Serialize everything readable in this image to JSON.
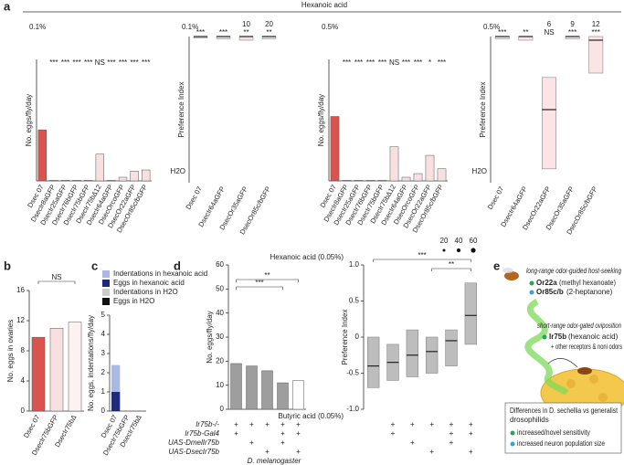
{
  "header": {
    "stimulus": "Hexanoic acid"
  },
  "panel_letters": [
    "a",
    "b",
    "c",
    "d",
    "e"
  ],
  "species_label": "D. melanogaster",
  "chart_data": [
    {
      "type": "bar",
      "concentration": "0.1%",
      "ylabel": "No. eggs/fly/day",
      "categories": [
        "Dsec 07",
        "DsecIr8aGFP",
        "DsecIr25aGFP",
        "DsecIr76bGFP",
        "DsecIr75bGFP",
        "DsecIr75bΔ12",
        "DsecIr64aGFP",
        "DsecOrcoGFP",
        "DsecOr22aGFP",
        "DsecOr85c/bGFP"
      ],
      "values": [
        4.2,
        0.05,
        0.05,
        0.05,
        0.05,
        2.2,
        0.05,
        0.3,
        0.8,
        0.9
      ],
      "colors": [
        "#d9534f",
        "#f9e0e0",
        "#f9e0e0",
        "#f9e0e0",
        "#f9e0e0",
        "#f9e0e0",
        "#f9e0e0",
        "#f9e0e0",
        "#f9e0e0",
        "#f9e0e0"
      ],
      "annotations": [
        null,
        "***",
        "***",
        "***",
        "***",
        "NS",
        "***",
        "***",
        "***",
        "***"
      ],
      "ylim": [
        0,
        10
      ]
    },
    {
      "type": "box",
      "concentration": "0.1%",
      "ylabel": "Preference Index",
      "bottom_label": "H2O",
      "categories": [
        "Dsec 07",
        "DsecIr64aGFP",
        "DsecOr35aGFP",
        "DsecOr85c/bGFP"
      ],
      "values": [
        1,
        1,
        1,
        1
      ],
      "q1": [
        0.98,
        0.97,
        0.95,
        0.97
      ],
      "q3": [
        1,
        1,
        1,
        1
      ],
      "color": "#f9e0e0",
      "annotations": [
        "***",
        "***",
        "**",
        "**"
      ],
      "n_labels": [
        null,
        null,
        "10",
        "20"
      ],
      "ylim": [
        -1,
        1
      ]
    },
    {
      "type": "bar",
      "concentration": "0.5%",
      "ylabel": "No. eggs/fly/day",
      "categories": [
        "Dsec 07",
        "DsecIr8aGFP",
        "DsecIr25aGFP",
        "DsecIr76bGFP",
        "DsecIr75bGFP",
        "DsecIr75bΔ12",
        "DsecIr64aGFP",
        "DsecOrcoGFP",
        "DsecOr22aGFP",
        "DsecOr85c/bGFP"
      ],
      "values": [
        5.3,
        0.05,
        0.05,
        0.05,
        0.05,
        2.8,
        0.3,
        0.6,
        2.1,
        1.0
      ],
      "colors": [
        "#d9534f",
        "#f9e0e0",
        "#f9e0e0",
        "#f9e0e0",
        "#f9e0e0",
        "#f9e0e0",
        "#f9e0e0",
        "#f9e0e0",
        "#f9e0e0",
        "#f9e0e0"
      ],
      "annotations": [
        null,
        "***",
        "***",
        "***",
        "***",
        "NS",
        "***",
        "***",
        "*",
        "***"
      ],
      "ylim": [
        0,
        10
      ]
    },
    {
      "type": "box",
      "concentration": "0.5%",
      "ylabel": "Preference Index",
      "bottom_label": "H2O",
      "categories": [
        "Dsec 07",
        "DsecIr64aGFP",
        "DsecOr22aGFP",
        "DsecOr35aGFP",
        "DsecOr85c/bGFP"
      ],
      "values": [
        1,
        1,
        0.0,
        1,
        0.95
      ],
      "q1": [
        0.97,
        0.95,
        -0.81,
        0.97,
        0.5
      ],
      "q3": [
        1,
        1,
        0.44,
        1,
        1
      ],
      "color": "#fbe3e6",
      "annotations": [
        "***",
        "**",
        "NS",
        "***",
        "***"
      ],
      "n_labels": [
        null,
        null,
        "6",
        "9",
        "12"
      ],
      "ylim": [
        -1,
        1
      ]
    },
    {
      "type": "bar",
      "ylabel": "No. eggs in ovaries",
      "categories": [
        "Dsec 07",
        "DsecIr75bGFP",
        "DsecIr75bΔ"
      ],
      "values": [
        9.8,
        11,
        11.8
      ],
      "colors": [
        "#d9534f",
        "#f9e0e0",
        "#fdf1f1"
      ],
      "comparisons": [
        "NS"
      ],
      "ylim": [
        0,
        16
      ],
      "yticks": [
        0,
        4,
        8,
        12,
        16
      ]
    },
    {
      "type": "stacked",
      "ylabel": "No. eggs, indentations/fly/day",
      "categories": [
        "Dsec 07",
        "DsecIr75bGFP",
        "DsecIr75bΔ"
      ],
      "series": [
        {
          "name": "Indentations in hexanoic acid",
          "color": "#a9b9df",
          "values": [
            1.4,
            0,
            0
          ]
        },
        {
          "name": "Eggs in hexanoic acid",
          "color": "#1f2a7a",
          "values": [
            1,
            0,
            0
          ]
        },
        {
          "name": "Indentations in H2O",
          "color": "#cccccc",
          "values": [
            0,
            0,
            0
          ]
        },
        {
          "name": "Eggs in H2O",
          "color": "#111111",
          "values": [
            0,
            0,
            0
          ]
        }
      ],
      "ylim": [
        0,
        5
      ],
      "yticks": [
        0,
        1,
        2,
        3,
        4,
        5
      ]
    },
    {
      "type": "bar",
      "ylabel": "No. eggs/fly/day",
      "values": [
        19,
        18,
        16,
        11,
        12
      ],
      "colors": [
        "#9e9e9e",
        "#9e9e9e",
        "#9e9e9e",
        "#9e9e9e",
        "#ffffff"
      ],
      "comparisons": [
        "***",
        "**"
      ],
      "ylim": [
        0,
        60
      ],
      "yticks": [
        0,
        10,
        20,
        30,
        40,
        50,
        60
      ]
    },
    {
      "type": "box",
      "ylabel": "Preference Index",
      "top_label": "Hexanoic acid (0.05%)",
      "bottom_label": "Butyric acid (0.05%)",
      "values": [
        -0.4,
        -0.35,
        -0.25,
        -0.2,
        -0.05,
        0.3
      ],
      "q1": [
        -0.7,
        -0.6,
        -0.55,
        -0.5,
        -0.4,
        -0.1
      ],
      "q3": [
        0.0,
        -0.1,
        0.1,
        0.0,
        0.1,
        0.75
      ],
      "color": "#bdbdbd",
      "comparisons": [
        "***",
        "**"
      ],
      "size_legend": [
        20,
        40,
        60
      ],
      "ylim": [
        -1,
        1
      ],
      "yticks": [
        {
          "value": 1,
          "label": "1.0"
        },
        0.5,
        0,
        -0.5,
        {
          "value": -1,
          "label": "-1.0"
        }
      ]
    }
  ],
  "genotypes": {
    "rows": [
      "Ir75b-/-",
      "Ir75b-Gal4",
      "UAS-DmelIr75b",
      "UAS-DsecIr75b"
    ],
    "d1": [
      [
        "+",
        "+",
        "+",
        "+",
        "+"
      ],
      [
        "+",
        null,
        null,
        "+",
        "+"
      ],
      [
        null,
        "+",
        null,
        "+",
        null
      ],
      [
        null,
        null,
        "+",
        null,
        "+"
      ]
    ],
    "d2": [
      [
        null,
        "+",
        "+",
        "+",
        "+",
        "+"
      ],
      [
        null,
        "+",
        null,
        null,
        "+",
        "+"
      ],
      [
        null,
        null,
        "+",
        null,
        "+",
        null
      ],
      [
        null,
        null,
        null,
        "+",
        null,
        "+"
      ]
    ]
  },
  "panel_e": {
    "long_range": "long-range odor-guided host-seeking",
    "or22a": "Or22a",
    "or22a_odor": "(methyl hexanoate)",
    "or85cb": "Or85c/b",
    "or85cb_odor": "(2-heptanone)",
    "short_range": "short-range odor-gated oviposition",
    "ir75b": "Ir75b",
    "ir75b_odor": "(hexanoic acid)",
    "other": "+ other receptors & noni odors",
    "box_title": [
      "Differences in D. sechellia vs generalist",
      "drosophilids"
    ],
    "items": [
      "increased/novel sensitivity",
      "increased neuron population size"
    ]
  }
}
